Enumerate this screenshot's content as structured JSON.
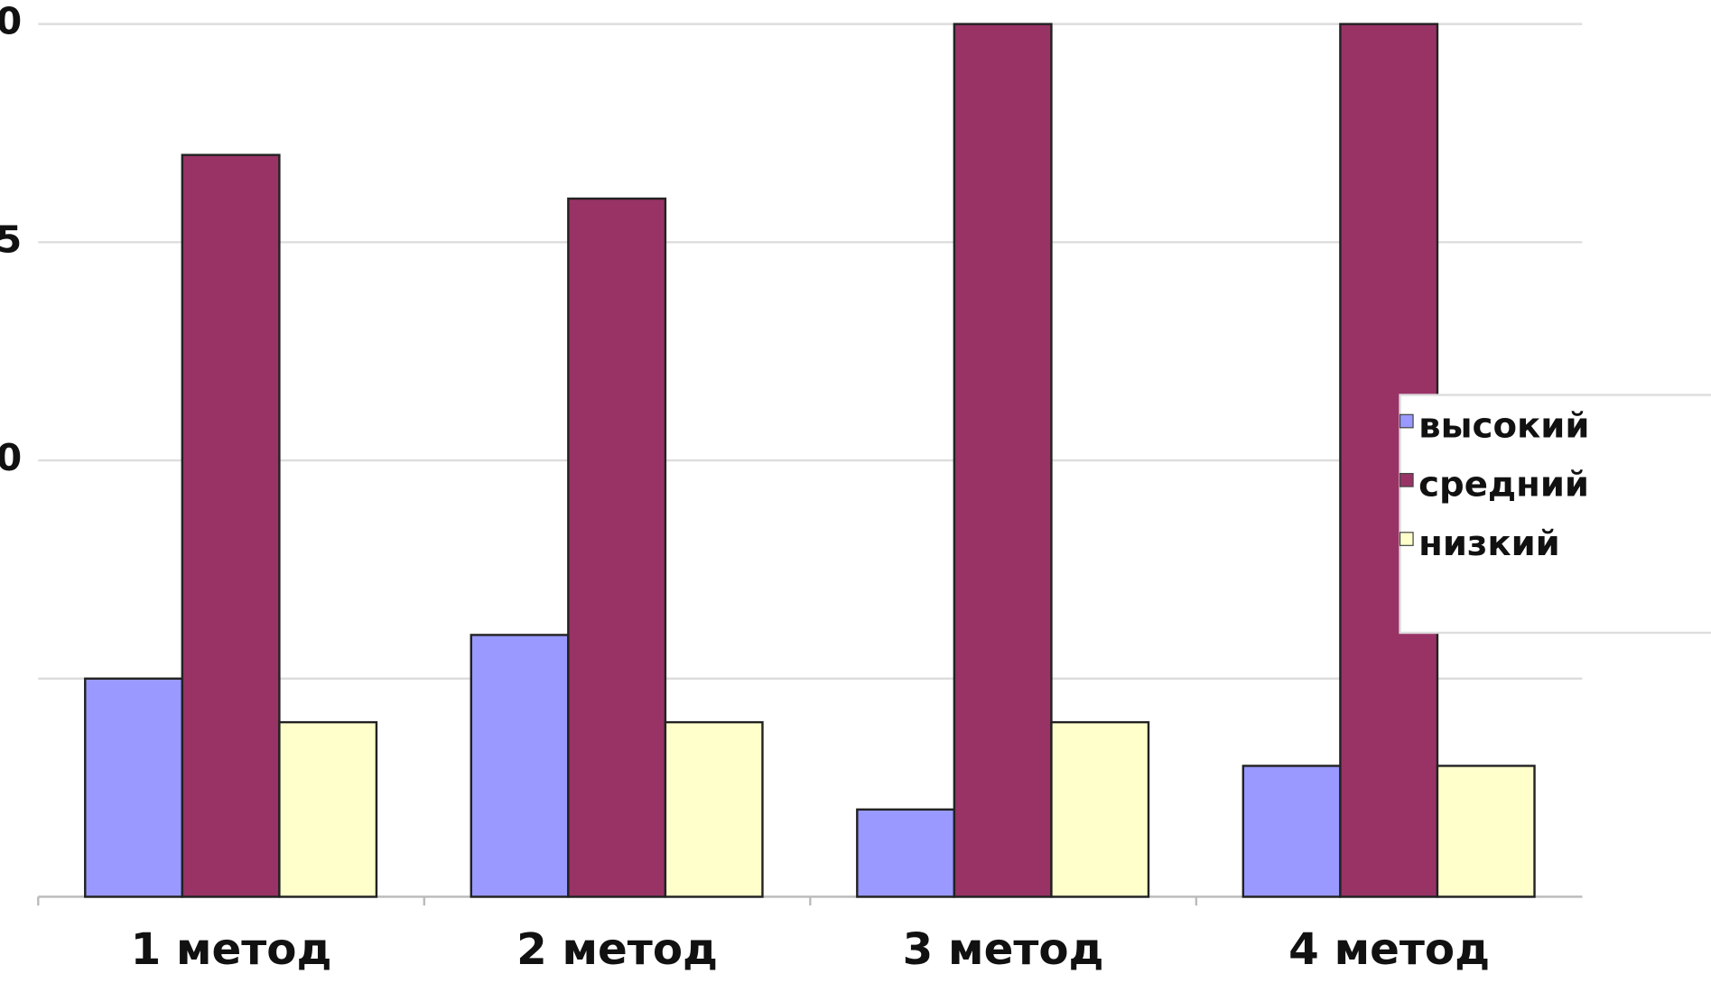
{
  "chart_data": {
    "type": "bar",
    "categories": [
      "1 метод",
      "2 метод",
      "3 метод",
      "4 метод"
    ],
    "series": [
      {
        "name": "высокий",
        "color": "#9999ff",
        "values": [
          5,
          6,
          2,
          3
        ]
      },
      {
        "name": "средний",
        "color": "#993366",
        "values": [
          17,
          16,
          20,
          20
        ]
      },
      {
        "name": "низкий",
        "color": "#ffffcc",
        "values": [
          4,
          4,
          4,
          3
        ]
      }
    ],
    "ylim": [
      0,
      20
    ],
    "yticks": [
      0,
      5,
      {
        "value": 10,
        "label": "0"
      },
      {
        "value": 15,
        "label": "5"
      },
      {
        "value": 20,
        "label": "0"
      }
    ],
    "grid": true,
    "legend": "right"
  }
}
